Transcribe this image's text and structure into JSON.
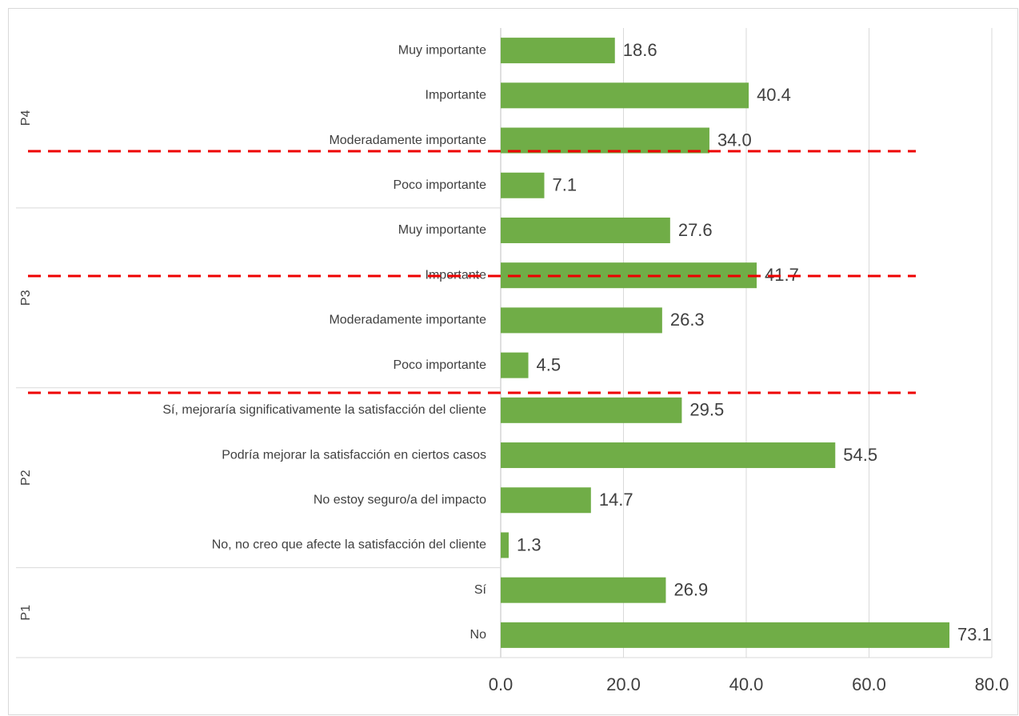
{
  "chart_data": {
    "type": "bar",
    "orientation": "horizontal",
    "color": "#70ad47",
    "groups": [
      {
        "name": "P4",
        "categories": [
          "Muy importante",
          "Importante",
          "Moderadamente importante",
          "Poco importante"
        ],
        "values": [
          18.6,
          40.4,
          34.0,
          7.1
        ],
        "value_labels": [
          "18.6",
          "40.4",
          "34.0",
          "7.1"
        ]
      },
      {
        "name": "P3",
        "categories": [
          "Muy importante",
          "Importante",
          "Moderadamente importante",
          "Poco importante"
        ],
        "values": [
          27.6,
          41.7,
          26.3,
          4.5
        ],
        "value_labels": [
          "27.6",
          "41.7",
          "26.3",
          "4.5"
        ]
      },
      {
        "name": "P2",
        "categories": [
          "Sí, mejoraría significativamente la satisfacción del cliente",
          "Podría mejorar la satisfacción en ciertos casos",
          "No estoy seguro/a del impacto",
          "No, no creo que afecte la satisfacción del cliente"
        ],
        "values": [
          29.5,
          54.5,
          14.7,
          1.3
        ],
        "value_labels": [
          "29.5",
          "54.5",
          "14.7",
          "1.3"
        ]
      },
      {
        "name": "P1",
        "categories": [
          "Sí",
          "No"
        ],
        "values": [
          26.9,
          73.1
        ],
        "value_labels": [
          "26.9",
          "73.1"
        ]
      }
    ],
    "xlim": [
      0,
      80
    ],
    "xticks": [
      {
        "value": 0,
        "label": "0.0"
      },
      {
        "value": 20,
        "label": "20.0"
      },
      {
        "value": 40,
        "label": "40.0"
      },
      {
        "value": 60,
        "label": "60.0"
      },
      {
        "value": 80,
        "label": "80.0"
      }
    ],
    "grid": true
  }
}
